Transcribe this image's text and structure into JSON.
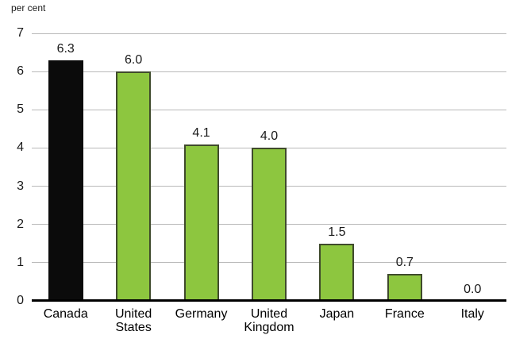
{
  "chart_data": {
    "type": "bar",
    "unit_label": "per cent",
    "categories": [
      "Canada",
      "United States",
      "Germany",
      "United Kingdom",
      "Japan",
      "France",
      "Italy"
    ],
    "category_label_lines": [
      [
        "Canada"
      ],
      [
        "United",
        "States"
      ],
      [
        "Germany"
      ],
      [
        "United",
        "Kingdom"
      ],
      [
        "Japan"
      ],
      [
        "France"
      ],
      [
        "Italy"
      ]
    ],
    "values": [
      6.3,
      6.0,
      4.1,
      4.0,
      1.5,
      0.7,
      0.0
    ],
    "value_labels": [
      "6.3",
      "6.0",
      "4.1",
      "4.0",
      "1.5",
      "0.7",
      "0.0"
    ],
    "bar_fill_colors": [
      "#0b0b0b",
      "#8dc63f",
      "#8dc63f",
      "#8dc63f",
      "#8dc63f",
      "#8dc63f",
      "#8dc63f"
    ],
    "bar_border_colors": [
      "#0b0b0b",
      "#3f4a2c",
      "#3f4a2c",
      "#3f4a2c",
      "#3f4a2c",
      "#3f4a2c",
      "#3f4a2c"
    ],
    "ylim": [
      0,
      7
    ],
    "yticks": [
      0,
      1,
      2,
      3,
      4,
      5,
      6,
      7
    ],
    "grid": true,
    "gridline_color": "#b9b9b9",
    "axis_color": "#000000",
    "highlight_color": "#0b0b0b",
    "accent_color": "#8dc63f",
    "legend": "none"
  }
}
